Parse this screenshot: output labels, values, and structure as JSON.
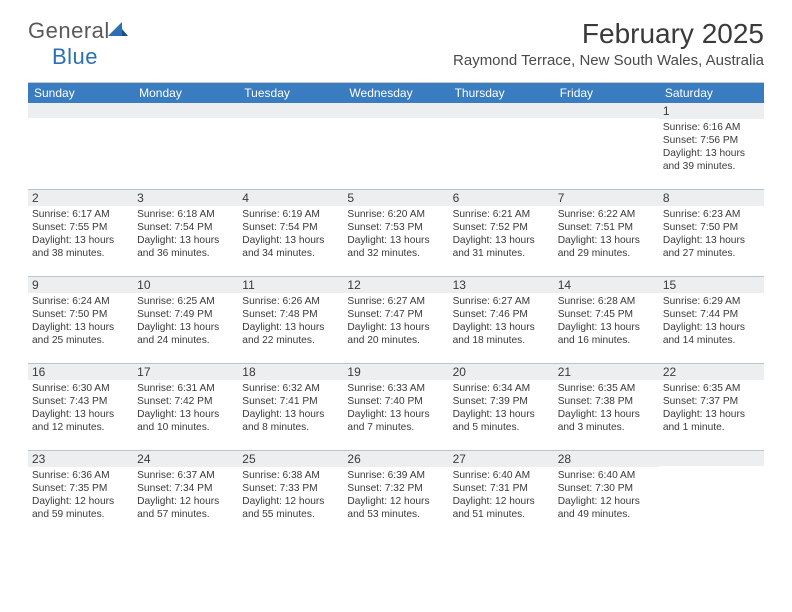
{
  "brand": {
    "word1": "General",
    "word2": "Blue"
  },
  "title": "February 2025",
  "location": "Raymond Terrace, New South Wales, Australia",
  "colors": {
    "header_bar": "#3a7cc0",
    "daynum_bg": "#edeef0",
    "rule": "#b8c4d0",
    "brand_blue": "#2b6fb5",
    "text": "#3a3a3a"
  },
  "dow": [
    "Sunday",
    "Monday",
    "Tuesday",
    "Wednesday",
    "Thursday",
    "Friday",
    "Saturday"
  ],
  "weeks": [
    [
      null,
      null,
      null,
      null,
      null,
      null,
      {
        "n": "1",
        "sr": "6:16 AM",
        "ss": "7:56 PM",
        "dl": "13 hours and 39 minutes."
      }
    ],
    [
      {
        "n": "2",
        "sr": "6:17 AM",
        "ss": "7:55 PM",
        "dl": "13 hours and 38 minutes."
      },
      {
        "n": "3",
        "sr": "6:18 AM",
        "ss": "7:54 PM",
        "dl": "13 hours and 36 minutes."
      },
      {
        "n": "4",
        "sr": "6:19 AM",
        "ss": "7:54 PM",
        "dl": "13 hours and 34 minutes."
      },
      {
        "n": "5",
        "sr": "6:20 AM",
        "ss": "7:53 PM",
        "dl": "13 hours and 32 minutes."
      },
      {
        "n": "6",
        "sr": "6:21 AM",
        "ss": "7:52 PM",
        "dl": "13 hours and 31 minutes."
      },
      {
        "n": "7",
        "sr": "6:22 AM",
        "ss": "7:51 PM",
        "dl": "13 hours and 29 minutes."
      },
      {
        "n": "8",
        "sr": "6:23 AM",
        "ss": "7:50 PM",
        "dl": "13 hours and 27 minutes."
      }
    ],
    [
      {
        "n": "9",
        "sr": "6:24 AM",
        "ss": "7:50 PM",
        "dl": "13 hours and 25 minutes."
      },
      {
        "n": "10",
        "sr": "6:25 AM",
        "ss": "7:49 PM",
        "dl": "13 hours and 24 minutes."
      },
      {
        "n": "11",
        "sr": "6:26 AM",
        "ss": "7:48 PM",
        "dl": "13 hours and 22 minutes."
      },
      {
        "n": "12",
        "sr": "6:27 AM",
        "ss": "7:47 PM",
        "dl": "13 hours and 20 minutes."
      },
      {
        "n": "13",
        "sr": "6:27 AM",
        "ss": "7:46 PM",
        "dl": "13 hours and 18 minutes."
      },
      {
        "n": "14",
        "sr": "6:28 AM",
        "ss": "7:45 PM",
        "dl": "13 hours and 16 minutes."
      },
      {
        "n": "15",
        "sr": "6:29 AM",
        "ss": "7:44 PM",
        "dl": "13 hours and 14 minutes."
      }
    ],
    [
      {
        "n": "16",
        "sr": "6:30 AM",
        "ss": "7:43 PM",
        "dl": "13 hours and 12 minutes."
      },
      {
        "n": "17",
        "sr": "6:31 AM",
        "ss": "7:42 PM",
        "dl": "13 hours and 10 minutes."
      },
      {
        "n": "18",
        "sr": "6:32 AM",
        "ss": "7:41 PM",
        "dl": "13 hours and 8 minutes."
      },
      {
        "n": "19",
        "sr": "6:33 AM",
        "ss": "7:40 PM",
        "dl": "13 hours and 7 minutes."
      },
      {
        "n": "20",
        "sr": "6:34 AM",
        "ss": "7:39 PM",
        "dl": "13 hours and 5 minutes."
      },
      {
        "n": "21",
        "sr": "6:35 AM",
        "ss": "7:38 PM",
        "dl": "13 hours and 3 minutes."
      },
      {
        "n": "22",
        "sr": "6:35 AM",
        "ss": "7:37 PM",
        "dl": "13 hours and 1 minute."
      }
    ],
    [
      {
        "n": "23",
        "sr": "6:36 AM",
        "ss": "7:35 PM",
        "dl": "12 hours and 59 minutes."
      },
      {
        "n": "24",
        "sr": "6:37 AM",
        "ss": "7:34 PM",
        "dl": "12 hours and 57 minutes."
      },
      {
        "n": "25",
        "sr": "6:38 AM",
        "ss": "7:33 PM",
        "dl": "12 hours and 55 minutes."
      },
      {
        "n": "26",
        "sr": "6:39 AM",
        "ss": "7:32 PM",
        "dl": "12 hours and 53 minutes."
      },
      {
        "n": "27",
        "sr": "6:40 AM",
        "ss": "7:31 PM",
        "dl": "12 hours and 51 minutes."
      },
      {
        "n": "28",
        "sr": "6:40 AM",
        "ss": "7:30 PM",
        "dl": "12 hours and 49 minutes."
      },
      null
    ]
  ],
  "labels": {
    "sunrise": "Sunrise:",
    "sunset": "Sunset:",
    "daylight": "Daylight:"
  }
}
